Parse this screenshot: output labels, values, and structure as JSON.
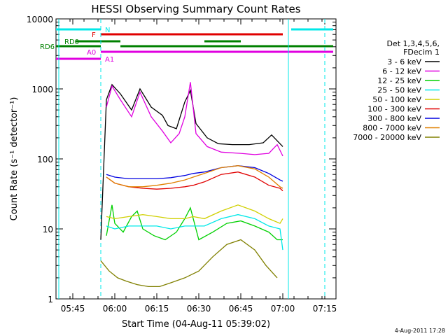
{
  "chart_data": {
    "type": "line",
    "title": "HESSI Observing Summary Count Rates",
    "xlabel": "Start Time (04-Aug-11 05:39:02)",
    "ylabel": "Count Rate (s⁻¹ detector⁻¹)",
    "y_scale": "log",
    "ylim": [
      1,
      10000
    ],
    "xlim_minutes_after_0539": [
      0,
      100
    ],
    "x_ticks": [
      "05:45",
      "06:00",
      "06:15",
      "06:30",
      "06:45",
      "07:00",
      "07:15"
    ],
    "y_ticks": [
      "1",
      "10",
      "100",
      "1000",
      "10000"
    ],
    "legend_placement": "right",
    "legend_header": [
      "Det 1,3,4,5,6,",
      "FDecim 1"
    ],
    "date_stamp": "4-Aug-2011 17:28",
    "series": [
      {
        "name": "3 - 6 keV",
        "color": "#000000",
        "t": [
          "05:55",
          "05:57",
          "05:59",
          "06:02",
          "06:06",
          "06:09",
          "06:13",
          "06:17",
          "06:19",
          "06:22",
          "06:25",
          "06:27",
          "06:29",
          "06:33",
          "06:37",
          "06:42",
          "06:48",
          "06:53",
          "06:56",
          "07:00"
        ],
        "values": [
          7,
          700,
          1150,
          850,
          500,
          1000,
          550,
          420,
          300,
          270,
          650,
          950,
          320,
          200,
          165,
          160,
          160,
          170,
          220,
          150
        ]
      },
      {
        "name": "6 - 12 keV",
        "color": "#e000e0",
        "t": [
          "05:57",
          "05:59",
          "06:02",
          "06:06",
          "06:09",
          "06:13",
          "06:17",
          "06:20",
          "06:23",
          "06:25",
          "06:27",
          "06:29",
          "06:33",
          "06:38",
          "06:45",
          "06:50",
          "06:55",
          "06:58",
          "07:00"
        ],
        "values": [
          550,
          1100,
          700,
          400,
          900,
          400,
          250,
          170,
          230,
          400,
          1250,
          230,
          150,
          125,
          120,
          115,
          120,
          160,
          110
        ]
      },
      {
        "name": "12 - 25 keV",
        "color": "#00d000",
        "t": [
          "05:57",
          "05:59",
          "06:00",
          "06:03",
          "06:06",
          "06:08",
          "06:10",
          "06:14",
          "06:18",
          "06:22",
          "06:25",
          "06:27",
          "06:30",
          "06:35",
          "06:40",
          "06:45",
          "06:50",
          "06:55",
          "06:58",
          "07:00"
        ],
        "values": [
          8,
          22,
          12,
          9,
          15,
          18,
          10,
          8,
          7,
          9,
          14,
          20,
          7,
          9,
          12,
          13,
          11,
          9,
          7,
          7
        ]
      },
      {
        "name": "25 - 50 keV",
        "color": "#00e8e8",
        "t": [
          "05:57",
          "06:00",
          "06:05",
          "06:10",
          "06:15",
          "06:20",
          "06:25",
          "06:28",
          "06:32",
          "06:38",
          "06:44",
          "06:50",
          "06:55",
          "06:59",
          "07:00"
        ],
        "values": [
          11,
          10,
          11,
          11,
          11,
          10,
          11,
          11,
          11,
          14,
          16,
          14,
          11,
          10,
          5
        ]
      },
      {
        "name": "50 - 100 keV",
        "color": "#d0d000",
        "t": [
          "05:57",
          "06:00",
          "06:05",
          "06:10",
          "06:15",
          "06:20",
          "06:25",
          "06:28",
          "06:32",
          "06:38",
          "06:44",
          "06:50",
          "06:55",
          "06:59",
          "07:00"
        ],
        "values": [
          15,
          14,
          15,
          16,
          15,
          14,
          14,
          15,
          14,
          18,
          22,
          18,
          14,
          12,
          14
        ]
      },
      {
        "name": "100 - 300 keV",
        "color": "#e00000",
        "t": [
          "05:57",
          "06:00",
          "06:05",
          "06:10",
          "06:15",
          "06:20",
          "06:25",
          "06:28",
          "06:32",
          "06:38",
          "06:44",
          "06:50",
          "06:55",
          "06:59",
          "07:00"
        ],
        "values": [
          55,
          45,
          40,
          38,
          37,
          38,
          40,
          42,
          47,
          60,
          65,
          55,
          42,
          38,
          35
        ]
      },
      {
        "name": "300 - 800 keV",
        "color": "#0000e0",
        "t": [
          "05:57",
          "06:00",
          "06:05",
          "06:10",
          "06:15",
          "06:20",
          "06:25",
          "06:28",
          "06:32",
          "06:38",
          "06:44",
          "06:50",
          "06:55",
          "06:59",
          "07:00"
        ],
        "values": [
          60,
          55,
          52,
          52,
          52,
          54,
          58,
          62,
          65,
          75,
          80,
          75,
          62,
          50,
          48
        ]
      },
      {
        "name": "800 - 7000 keV",
        "color": "#e08000",
        "t": [
          "05:57",
          "06:00",
          "06:05",
          "06:10",
          "06:15",
          "06:20",
          "06:25",
          "06:28",
          "06:32",
          "06:38",
          "06:44",
          "06:50",
          "06:55",
          "06:59",
          "07:00"
        ],
        "values": [
          55,
          45,
          40,
          40,
          42,
          45,
          50,
          55,
          62,
          75,
          80,
          72,
          55,
          40,
          38
        ]
      },
      {
        "name": "7000 - 20000 keV",
        "color": "#808000",
        "t": [
          "05:55",
          "05:58",
          "06:01",
          "06:04",
          "06:08",
          "06:12",
          "06:16",
          "06:20",
          "06:25",
          "06:30",
          "06:35",
          "06:40",
          "06:45",
          "06:50",
          "06:54",
          "06:58"
        ],
        "values": [
          3.5,
          2.5,
          2,
          1.8,
          1.6,
          1.5,
          1.5,
          1.7,
          2,
          2.5,
          4,
          6,
          7,
          5,
          3,
          2
        ]
      }
    ],
    "state_bars": [
      {
        "label": "N",
        "color": "#00e8e8",
        "segments": [
          [
            "05:39",
            "05:55"
          ],
          [
            "07:03",
            "07:18"
          ]
        ]
      },
      {
        "label": "F",
        "color": "#e00000",
        "segments": [
          [
            "05:55",
            "07:00"
          ]
        ]
      },
      {
        "label": "RD0",
        "color": "#008000",
        "segments": [
          [
            "05:46",
            "06:02"
          ],
          [
            "06:32",
            "06:45"
          ]
        ]
      },
      {
        "label": "RD6",
        "color": "#008000",
        "segments": [
          [
            "05:39",
            "05:55"
          ],
          [
            "06:02",
            "06:27"
          ],
          [
            "06:27",
            "06:57"
          ],
          [
            "06:57",
            "07:18"
          ]
        ]
      },
      {
        "label": "A0",
        "color": "#e000e0",
        "segments": [
          [
            "05:55",
            "07:18"
          ]
        ]
      },
      {
        "label": "A1",
        "color": "#e000e0",
        "segments": [
          [
            "05:39",
            "05:55"
          ]
        ]
      }
    ]
  }
}
